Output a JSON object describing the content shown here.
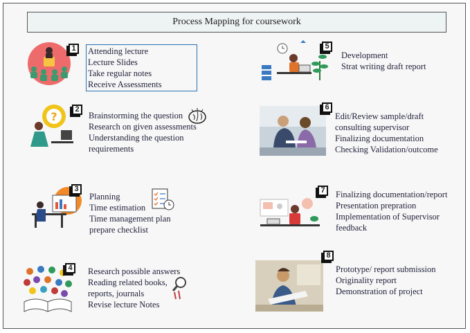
{
  "title": "Process Mapping for coursework",
  "steps": [
    {
      "number": "1",
      "icon": "lecture-audience-icon",
      "lines": [
        "Attending lecture",
        "Lecture Slides",
        "Take regular notes",
        "Receive Assessments"
      ]
    },
    {
      "number": "2",
      "icon": "question-thinking-icon",
      "lines": [
        "Brainstorming the question",
        "Research on given assessments",
        "Understanding the question",
        "requirements"
      ]
    },
    {
      "number": "3",
      "icon": "planning-desk-icon",
      "lines": [
        "Planning",
        "Time estimation",
        "Time management plan",
        "prepare checklist"
      ]
    },
    {
      "number": "4",
      "icon": "open-book-icon",
      "lines": [
        "Research possible answers",
        "Reading related books,",
        "reports, journals",
        "Revise lecture Notes"
      ]
    },
    {
      "number": "5",
      "icon": "developer-desk-icon",
      "lines": [
        "Development",
        "Strat writing draft report"
      ]
    },
    {
      "number": "6",
      "icon": "review-meeting-photo-icon",
      "lines": [
        "Edit/Review sample/draft",
        "consulting supervisor",
        "Finalizing documentation",
        "Checking Validation/outcome"
      ]
    },
    {
      "number": "7",
      "icon": "presentation-desk-icon",
      "lines": [
        "Finalizing documentation/report",
        "Presentation prepration",
        "Implementation of Supervisor",
        "feedback"
      ]
    },
    {
      "number": "8",
      "icon": "submission-photo-icon",
      "lines": [
        "Prototype/ report submission",
        "Originality report",
        "Demonstration of project"
      ]
    }
  ]
}
